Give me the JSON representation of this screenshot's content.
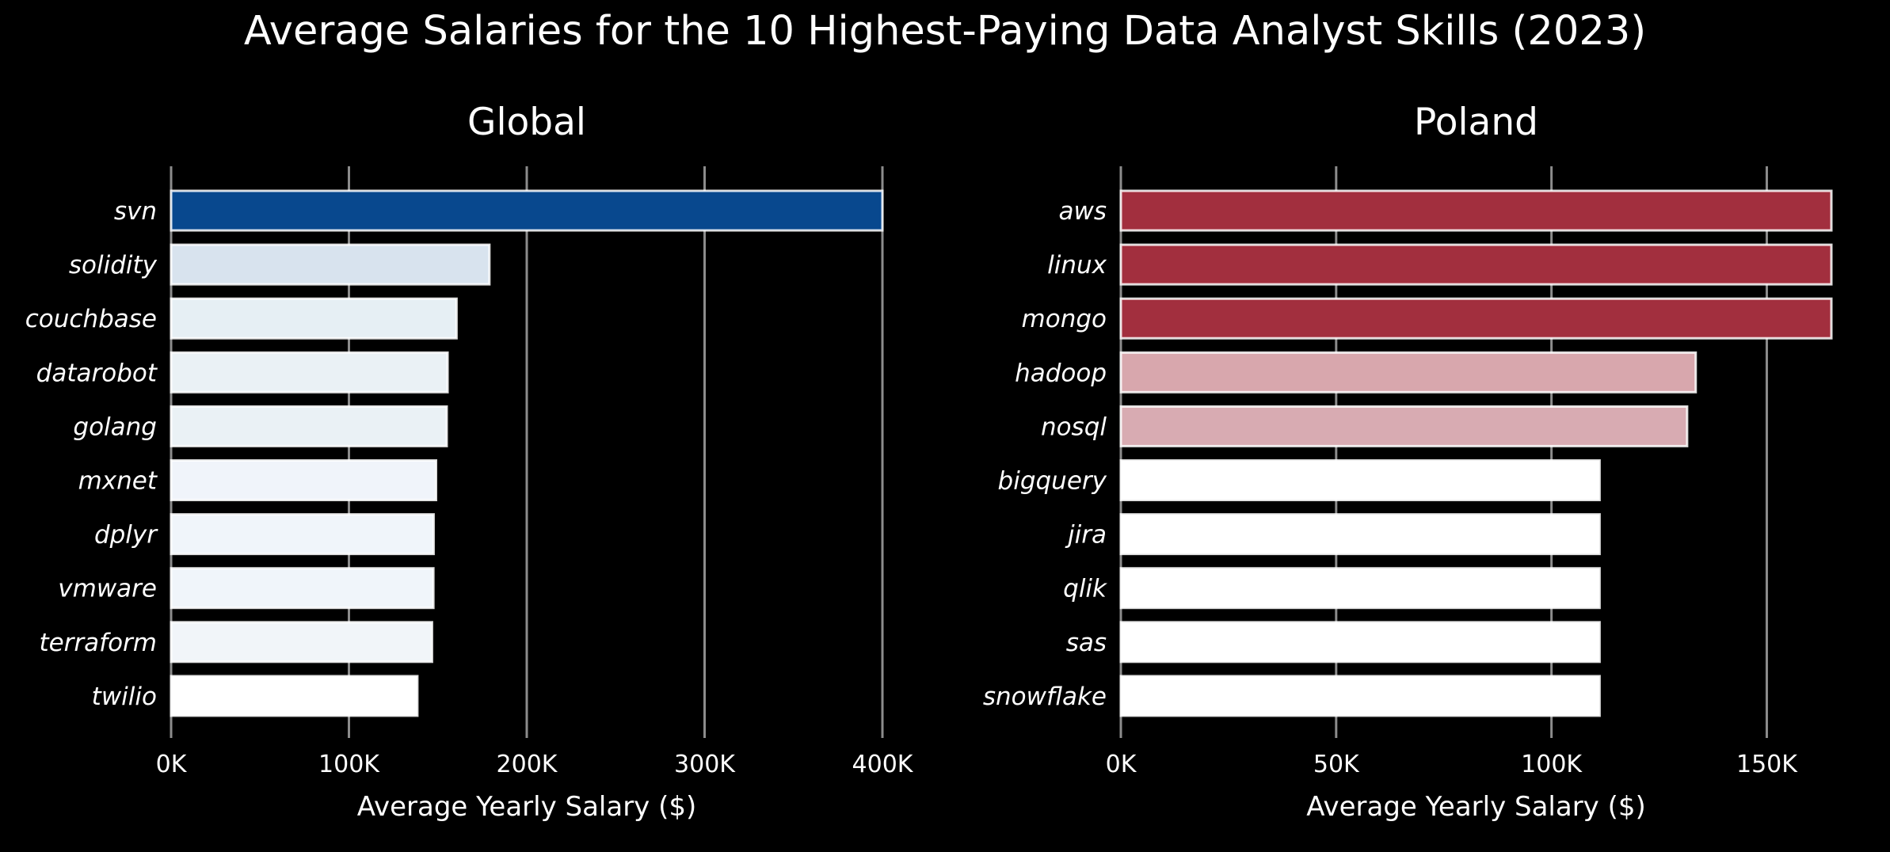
{
  "suptitle": "Average Salaries for the 10 Highest-Paying Data Analyst Skills (2023)",
  "chart_data": [
    {
      "type": "bar",
      "orientation": "horizontal",
      "title": "Global",
      "xlabel": "Average Yearly Salary ($)",
      "ylabel": "",
      "xlim": [
        0,
        400000
      ],
      "xticks": [
        0,
        100000,
        200000,
        300000,
        400000
      ],
      "xtick_labels": [
        "0K",
        "100K",
        "200K",
        "300K",
        "400K"
      ],
      "grid": "x",
      "colormap": "Blues",
      "categories": [
        "svn",
        "solidity",
        "couchbase",
        "datarobot",
        "golang",
        "mxnet",
        "dplyr",
        "vmware",
        "terraform",
        "twilio"
      ],
      "values": [
        400000,
        179000,
        160515,
        155486,
        155000,
        149000,
        147633,
        147500,
        146734,
        138500
      ],
      "colors": [
        "#08488e",
        "#d8e3ee",
        "#e6eff4",
        "#eaf1f5",
        "#eaf1f5",
        "#f0f4fa",
        "#f0f5fa",
        "#f0f5fa",
        "#f1f5f9",
        "#ffffff"
      ]
    },
    {
      "type": "bar",
      "orientation": "horizontal",
      "title": "Poland",
      "xlabel": "Average Yearly Salary ($)",
      "ylabel": "",
      "xlim": [
        0,
        165000
      ],
      "xticks": [
        0,
        50000,
        100000,
        150000
      ],
      "xtick_labels": [
        "0K",
        "50K",
        "100K",
        "150K"
      ],
      "grid": "x",
      "colormap": "Reds",
      "categories": [
        "aws",
        "linux",
        "mongo",
        "hadoop",
        "nosql",
        "bigquery",
        "jira",
        "qlik",
        "sas",
        "snowflake"
      ],
      "values": [
        165000,
        165000,
        165000,
        133500,
        131500,
        111175,
        111175,
        111175,
        111175,
        111175
      ],
      "colors": [
        "#a22f3e",
        "#a22f3e",
        "#a22f3e",
        "#d8a7ad",
        "#d8abb2",
        "#ffffff",
        "#ffffff",
        "#ffffff",
        "#ffffff",
        "#ffffff"
      ]
    }
  ]
}
